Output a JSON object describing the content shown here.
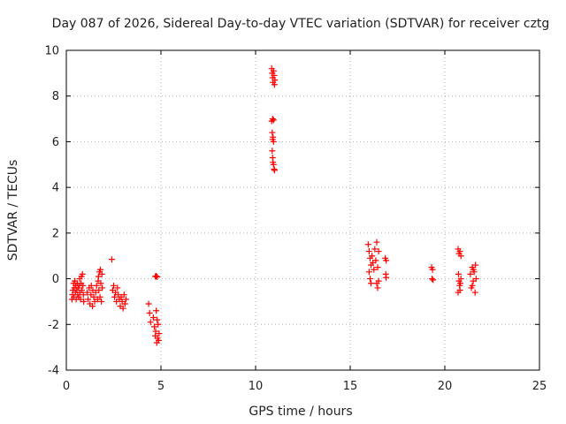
{
  "chart_data": {
    "type": "scatter",
    "title": "Day 087 of 2026, Sidereal Day-to-day VTEC variation (SDTVAR) for receiver cztg",
    "xlabel": "GPS time / hours",
    "ylabel": "SDTVAR / TECUs",
    "xlim": [
      0,
      25
    ],
    "ylim": [
      -4,
      10
    ],
    "xticks": [
      0,
      5,
      10,
      15,
      20,
      25
    ],
    "yticks": [
      -4,
      -2,
      0,
      2,
      4,
      6,
      8,
      10
    ],
    "grid": true,
    "marker": "+",
    "color": "#ff0000",
    "series": [
      {
        "name": "SDTVAR",
        "points": [
          [
            0.3,
            -0.9
          ],
          [
            0.32,
            -0.7
          ],
          [
            0.35,
            -0.5
          ],
          [
            0.38,
            -0.2
          ],
          [
            0.4,
            -0.8
          ],
          [
            0.42,
            -0.4
          ],
          [
            0.45,
            -0.1
          ],
          [
            0.48,
            -0.6
          ],
          [
            0.5,
            -0.3
          ],
          [
            0.52,
            -0.9
          ],
          [
            0.55,
            -0.5
          ],
          [
            0.58,
            -0.2
          ],
          [
            0.6,
            -0.7
          ],
          [
            0.62,
            -0.4
          ],
          [
            0.65,
            -0.8
          ],
          [
            0.68,
            -0.3
          ],
          [
            0.7,
            0.0
          ],
          [
            0.72,
            -0.6
          ],
          [
            0.75,
            -0.9
          ],
          [
            0.78,
            -0.2
          ],
          [
            0.8,
            0.1
          ],
          [
            0.82,
            -0.5
          ],
          [
            0.85,
            0.2
          ],
          [
            0.88,
            -0.3
          ],
          [
            0.9,
            -0.7
          ],
          [
            0.92,
            -1.0
          ],
          [
            1.1,
            -0.6
          ],
          [
            1.15,
            -0.9
          ],
          [
            1.2,
            -0.4
          ],
          [
            1.25,
            -1.1
          ],
          [
            1.3,
            -0.7
          ],
          [
            1.32,
            -0.3
          ],
          [
            1.38,
            -1.2
          ],
          [
            1.4,
            -0.5
          ],
          [
            1.45,
            -0.8
          ],
          [
            1.5,
            -1.0
          ],
          [
            1.55,
            -0.6
          ],
          [
            1.6,
            -0.3
          ],
          [
            1.65,
            -0.9
          ],
          [
            1.68,
            -0.1
          ],
          [
            1.7,
            0.1
          ],
          [
            1.72,
            -0.5
          ],
          [
            1.75,
            0.3
          ],
          [
            1.78,
            -0.8
          ],
          [
            1.8,
            0.4
          ],
          [
            1.82,
            -0.2
          ],
          [
            1.85,
            -1.0
          ],
          [
            1.88,
            0.2
          ],
          [
            1.9,
            -0.4
          ],
          [
            2.4,
            0.85
          ],
          [
            2.45,
            -0.5
          ],
          [
            2.5,
            -0.3
          ],
          [
            2.55,
            -0.8
          ],
          [
            2.6,
            -0.6
          ],
          [
            2.65,
            -1.0
          ],
          [
            2.7,
            -0.4
          ],
          [
            2.75,
            -0.7
          ],
          [
            2.8,
            -0.9
          ],
          [
            2.85,
            -1.2
          ],
          [
            2.9,
            -0.8
          ],
          [
            2.95,
            -1.0
          ],
          [
            3.0,
            -1.3
          ],
          [
            3.05,
            -0.7
          ],
          [
            3.1,
            -1.1
          ],
          [
            3.15,
            -0.9
          ],
          [
            4.35,
            -1.1
          ],
          [
            4.4,
            -1.5
          ],
          [
            4.45,
            -1.9
          ],
          [
            4.6,
            -1.7
          ],
          [
            4.65,
            -2.1
          ],
          [
            4.7,
            -2.5
          ],
          [
            4.72,
            -2.3
          ],
          [
            4.75,
            -1.4
          ],
          [
            4.78,
            -2.8
          ],
          [
            4.8,
            -1.8
          ],
          [
            4.82,
            -2.6
          ],
          [
            4.85,
            -2.0
          ],
          [
            4.88,
            -2.7
          ],
          [
            4.9,
            -2.4
          ],
          [
            4.7,
            0.1
          ],
          [
            4.75,
            0.12
          ],
          [
            4.8,
            0.08
          ],
          [
            10.85,
            9.2
          ],
          [
            10.88,
            9.0
          ],
          [
            10.9,
            8.8
          ],
          [
            10.92,
            8.6
          ],
          [
            10.95,
            9.1
          ],
          [
            10.98,
            8.9
          ],
          [
            11.0,
            8.5
          ],
          [
            11.02,
            8.7
          ],
          [
            10.85,
            6.9
          ],
          [
            10.9,
            7.0
          ],
          [
            10.95,
            6.95
          ],
          [
            10.88,
            6.4
          ],
          [
            10.9,
            6.1
          ],
          [
            10.92,
            6.2
          ],
          [
            10.95,
            6.0
          ],
          [
            10.88,
            5.6
          ],
          [
            10.9,
            5.3
          ],
          [
            10.92,
            5.1
          ],
          [
            10.95,
            5.0
          ],
          [
            10.98,
            4.8
          ],
          [
            11.0,
            4.75
          ],
          [
            15.95,
            1.5
          ],
          [
            16.0,
            1.2
          ],
          [
            16.05,
            0.9
          ],
          [
            16.1,
            0.6
          ],
          [
            16.0,
            0.3
          ],
          [
            16.05,
            0.0
          ],
          [
            16.1,
            -0.2
          ],
          [
            16.15,
            1.0
          ],
          [
            16.2,
            0.7
          ],
          [
            16.25,
            0.4
          ],
          [
            16.3,
            1.3
          ],
          [
            16.35,
            0.8
          ],
          [
            16.4,
            1.6
          ],
          [
            16.45,
            0.5
          ],
          [
            16.5,
            1.2
          ],
          [
            16.4,
            -0.2
          ],
          [
            16.45,
            -0.4
          ],
          [
            16.5,
            -0.1
          ],
          [
            16.85,
            0.9
          ],
          [
            16.9,
            0.8
          ],
          [
            16.88,
            0.2
          ],
          [
            16.9,
            0.05
          ],
          [
            19.3,
            0.5
          ],
          [
            19.35,
            0.4
          ],
          [
            19.32,
            0.0
          ],
          [
            19.38,
            -0.05
          ],
          [
            20.7,
            1.3
          ],
          [
            20.75,
            1.1
          ],
          [
            20.8,
            1.2
          ],
          [
            20.85,
            1.0
          ],
          [
            20.72,
            0.2
          ],
          [
            20.75,
            -0.1
          ],
          [
            20.78,
            -0.3
          ],
          [
            20.8,
            -0.5
          ],
          [
            20.82,
            -0.2
          ],
          [
            20.85,
            0.0
          ],
          [
            20.7,
            -0.6
          ],
          [
            21.35,
            0.2
          ],
          [
            21.4,
            -0.4
          ],
          [
            21.45,
            0.5
          ],
          [
            21.5,
            -0.1
          ],
          [
            21.55,
            0.3
          ],
          [
            21.6,
            -0.6
          ],
          [
            21.62,
            0.6
          ],
          [
            21.65,
            0.0
          ],
          [
            21.45,
            -0.3
          ],
          [
            21.5,
            0.4
          ]
        ]
      }
    ]
  }
}
